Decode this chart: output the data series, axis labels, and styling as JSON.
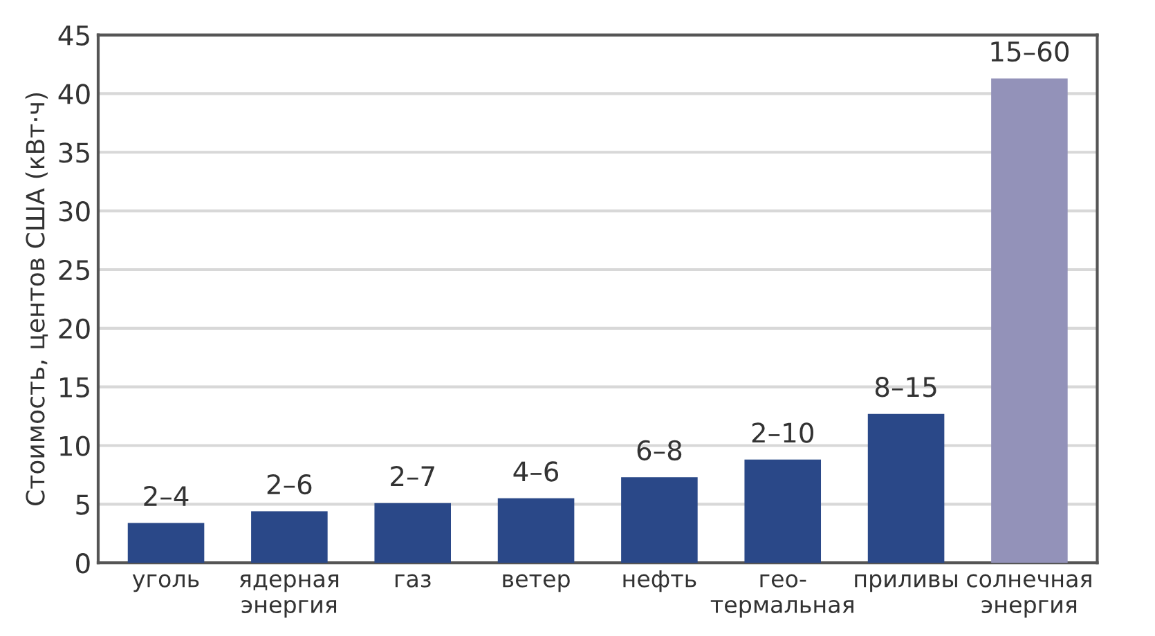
{
  "chart_data": {
    "type": "bar",
    "ylabel": "Стоимость, центов США (кВт·ч)",
    "categories": [
      "уголь",
      "ядерная\nэнергия",
      "газ",
      "ветер",
      "нефть",
      "гео-\nтермальная",
      "приливы",
      "солнечная\nэнергия"
    ],
    "values": [
      3.4,
      4.4,
      5.1,
      5.5,
      7.3,
      8.8,
      12.7,
      41.3
    ],
    "colors": [
      "#2a4888",
      "#2a4888",
      "#2a4888",
      "#2a4888",
      "#2a4888",
      "#2a4888",
      "#2a4888",
      "#9392b9"
    ],
    "value_labels": [
      "2–4",
      "2–6",
      "2–7",
      "4–6",
      "6–8",
      "2–10",
      "8–15",
      "15–60"
    ],
    "ylim": [
      0,
      45
    ],
    "yticks": [
      0,
      5,
      10,
      15,
      20,
      25,
      30,
      35,
      40,
      45
    ],
    "grid": "y"
  }
}
